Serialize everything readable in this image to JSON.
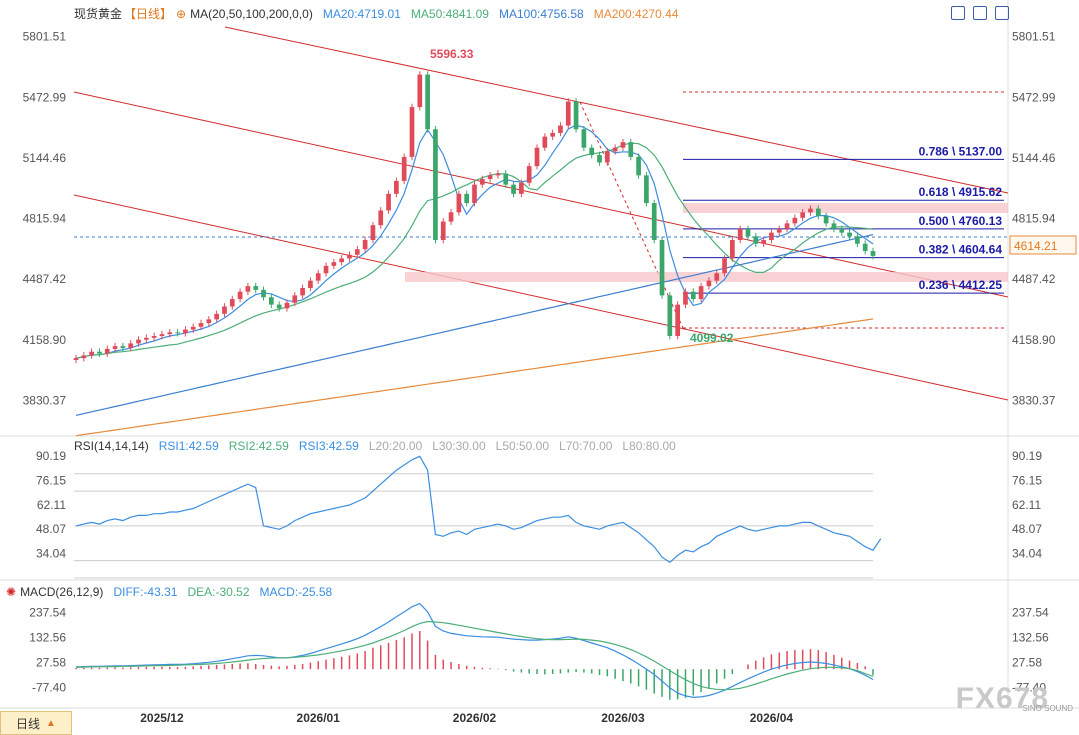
{
  "header": {
    "instrument": "现货黄金",
    "period_label": "【日线】",
    "ma_label": "MA(20,50,100,200,0,0)",
    "ma20": "MA20:4719.01",
    "ma50": "MA50:4841.09",
    "ma100": "MA100:4756.58",
    "ma200": "MA200:4270.44"
  },
  "rsi_panel": {
    "title": "RSI(14,14,14)",
    "rsi1": "RSI1:42.59",
    "rsi2": "RSI2:42.59",
    "rsi3": "RSI3:42.59",
    "l20": "L20:20.00",
    "l30": "L30:30.00",
    "l50": "L50:50.00",
    "l70": "L70:70.00",
    "l80": "L80:80.00"
  },
  "macd_panel": {
    "title": "MACD(26,12,9)",
    "diff": "DIFF:-43.31",
    "dea": "DEA:-30.52",
    "macd": "MACD:-25.58"
  },
  "bottom_tab": "日线",
  "watermark": "FX678",
  "watermark_sub": "SINO SOUND",
  "colors": {
    "up": "#e04b5a",
    "down": "#3aa66a",
    "ma20": "#3a8ee0",
    "ma50": "#4cae78",
    "ma100": "#3a7ed0",
    "ma200": "#e88a3c",
    "channel": "#d22b2b",
    "fib": "#1a1aa8"
  },
  "chart_data": {
    "type": "candlestick",
    "price_axis_ticks": [
      5801.51,
      5472.99,
      5144.46,
      4815.94,
      4487.42,
      4158.9,
      3830.37
    ],
    "price_range": [
      3660,
      5870
    ],
    "x_labels": [
      {
        "label": "2025/12",
        "index": 11
      },
      {
        "label": "2026/01",
        "index": 31
      },
      {
        "label": "2026/02",
        "index": 51
      },
      {
        "label": "2026/03",
        "index": 70
      },
      {
        "label": "2026/04",
        "index": 89
      }
    ],
    "current_price": "4614.21",
    "annotations": {
      "high": "5596.33",
      "low": "4099.02"
    },
    "fib_levels": [
      {
        "label": "0.786 \\ 5137.00",
        "price": 5137.0
      },
      {
        "label": "0.618 \\ 4915.62",
        "price": 4915.62
      },
      {
        "label": "0.500 \\ 4760.13",
        "price": 4760.13
      },
      {
        "label": "0.382 \\ 4604.64",
        "price": 4604.64
      },
      {
        "label": "0.236 \\ 4412.25",
        "price": 4412.25
      }
    ],
    "closes": [
      4060,
      4075,
      4095,
      4085,
      4110,
      4125,
      4115,
      4140,
      4160,
      4170,
      4180,
      4190,
      4200,
      4195,
      4215,
      4230,
      4250,
      4270,
      4300,
      4340,
      4380,
      4420,
      4450,
      4430,
      4390,
      4350,
      4330,
      4360,
      4400,
      4440,
      4480,
      4520,
      4560,
      4580,
      4600,
      4620,
      4650,
      4700,
      4780,
      4860,
      4950,
      5020,
      5150,
      5420,
      5596,
      5300,
      4700,
      4800,
      4850,
      4950,
      4900,
      5000,
      5030,
      5050,
      5060,
      5000,
      4950,
      5010,
      5100,
      5200,
      5260,
      5280,
      5320,
      5450,
      5300,
      5200,
      5160,
      5120,
      5180,
      5200,
      5230,
      5150,
      5050,
      4900,
      4700,
      4400,
      4180,
      4350,
      4420,
      4380,
      4450,
      4480,
      4520,
      4600,
      4700,
      4760,
      4720,
      4680,
      4700,
      4740,
      4760,
      4790,
      4820,
      4850,
      4870,
      4830,
      4790,
      4760,
      4740,
      4720,
      4680,
      4640,
      4614
    ],
    "rsi": [
      50,
      51,
      52,
      51,
      53,
      54,
      53,
      55,
      56,
      56,
      57,
      57,
      58,
      58,
      59,
      60,
      62,
      64,
      66,
      68,
      70,
      72,
      74,
      72,
      50,
      49,
      48,
      50,
      53,
      55,
      57,
      58,
      59,
      60,
      61,
      62,
      64,
      66,
      70,
      74,
      78,
      82,
      85,
      88,
      90,
      82,
      45,
      44,
      46,
      47,
      45,
      48,
      49,
      50,
      51,
      50,
      48,
      49,
      51,
      53,
      54,
      55,
      55,
      56,
      52,
      50,
      49,
      48,
      50,
      51,
      52,
      49,
      46,
      42,
      38,
      32,
      29,
      33,
      36,
      35,
      38,
      40,
      44,
      46,
      48,
      50,
      48,
      47,
      48,
      49,
      50,
      50,
      51,
      52,
      52,
      50,
      48,
      46,
      45,
      44,
      41,
      38,
      36,
      42.59
    ],
    "macd_hist": [
      5,
      6,
      7,
      6,
      7,
      8,
      7,
      8,
      9,
      9,
      10,
      10,
      10,
      9,
      10,
      12,
      14,
      16,
      18,
      20,
      22,
      24,
      25,
      22,
      18,
      15,
      12,
      14,
      18,
      22,
      28,
      34,
      40,
      46,
      52,
      58,
      66,
      76,
      90,
      100,
      110,
      122,
      134,
      150,
      160,
      120,
      60,
      40,
      30,
      22,
      14,
      10,
      6,
      4,
      2,
      -4,
      -10,
      -14,
      -18,
      -20,
      -22,
      -20,
      -18,
      -14,
      -12,
      -14,
      -18,
      -24,
      -30,
      -40,
      -50,
      -60,
      -72,
      -86,
      -102,
      -116,
      -128,
      -126,
      -120,
      -110,
      -96,
      -80,
      -60,
      -40,
      -20,
      0,
      20,
      36,
      50,
      62,
      70,
      76,
      80,
      82,
      84,
      80,
      72,
      60,
      48,
      36,
      26,
      12,
      -25.58
    ],
    "macd_diff": [
      10,
      11,
      12,
      12,
      13,
      14,
      14,
      15,
      16,
      17,
      18,
      19,
      20,
      20,
      21,
      23,
      26,
      29,
      33,
      38,
      44,
      50,
      56,
      58,
      56,
      52,
      48,
      48,
      52,
      58,
      66,
      76,
      86,
      96,
      106,
      116,
      128,
      142,
      160,
      178,
      198,
      220,
      240,
      262,
      275,
      240,
      180,
      160,
      150,
      145,
      140,
      138,
      136,
      135,
      134,
      130,
      126,
      124,
      122,
      122,
      124,
      126,
      130,
      136,
      130,
      120,
      110,
      100,
      90,
      76,
      60,
      42,
      22,
      0,
      -22,
      -50,
      -78,
      -100,
      -112,
      -118,
      -116,
      -110,
      -100,
      -88,
      -72,
      -56,
      -40,
      -26,
      -12,
      0,
      10,
      18,
      24,
      28,
      30,
      28,
      24,
      18,
      10,
      2,
      -10,
      -25,
      -43.31
    ],
    "macd_dea": [
      8,
      9,
      10,
      10,
      11,
      11,
      12,
      12,
      13,
      14,
      15,
      15,
      16,
      17,
      18,
      19,
      20,
      22,
      24,
      27,
      30,
      34,
      38,
      42,
      45,
      47,
      48,
      48,
      50,
      53,
      56,
      60,
      65,
      71,
      77,
      84,
      92,
      100,
      110,
      122,
      134,
      148,
      162,
      178,
      192,
      200,
      198,
      195,
      190,
      184,
      178,
      172,
      166,
      160,
      154,
      148,
      142,
      137,
      132,
      128,
      125,
      124,
      124,
      125,
      126,
      125,
      122,
      118,
      112,
      104,
      94,
      82,
      68,
      52,
      34,
      14,
      -6,
      -26,
      -44,
      -60,
      -72,
      -80,
      -84,
      -86,
      -84,
      -80,
      -72,
      -62,
      -52,
      -40,
      -30,
      -20,
      -12,
      -4,
      2,
      6,
      8,
      8,
      6,
      2,
      -6,
      -18,
      -30.52
    ]
  }
}
